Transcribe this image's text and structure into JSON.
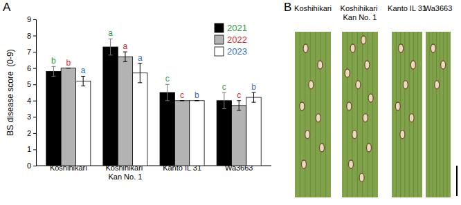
{
  "chart_data": {
    "type": "bar",
    "annotations": [
      "A"
    ],
    "y_label": "BS disease score  (0-9)",
    "categories": [
      "Koshihikari",
      "Koshihikari Kan No. 1",
      "Kanto IL 31",
      "Wa3663"
    ],
    "series": [
      {
        "name": "2021",
        "color": "#000000",
        "values": [
          5.8,
          7.3,
          4.5,
          4.0
        ],
        "errors": [
          0.3,
          0.5,
          0.5,
          0.5
        ],
        "letters": [
          "b",
          "a",
          "c",
          "c"
        ]
      },
      {
        "name": "2022",
        "color": "#b3b3b3",
        "values": [
          6.0,
          6.7,
          4.0,
          3.7
        ],
        "errors": [
          0.0,
          0.3,
          0.0,
          0.3
        ],
        "letters": [
          "b",
          "a",
          "c",
          "c"
        ]
      },
      {
        "name": "2023",
        "color": "#ffffff",
        "values": [
          5.2,
          5.7,
          4.0,
          4.2
        ],
        "errors": [
          0.3,
          0.6,
          0.0,
          0.3
        ],
        "letters": [
          "a",
          "a",
          "b",
          "b"
        ]
      }
    ],
    "ylim": [
      0,
      9
    ],
    "yticks": [
      0,
      1,
      2,
      3,
      4,
      5,
      6,
      7,
      8,
      9
    ],
    "grid": false,
    "legend": "top-right"
  },
  "image_panel": {
    "label": "B",
    "captions": [
      "Koshihikari",
      "Koshihikari Kan No. 1",
      "Kanto IL 31",
      "Wa3663"
    ]
  }
}
